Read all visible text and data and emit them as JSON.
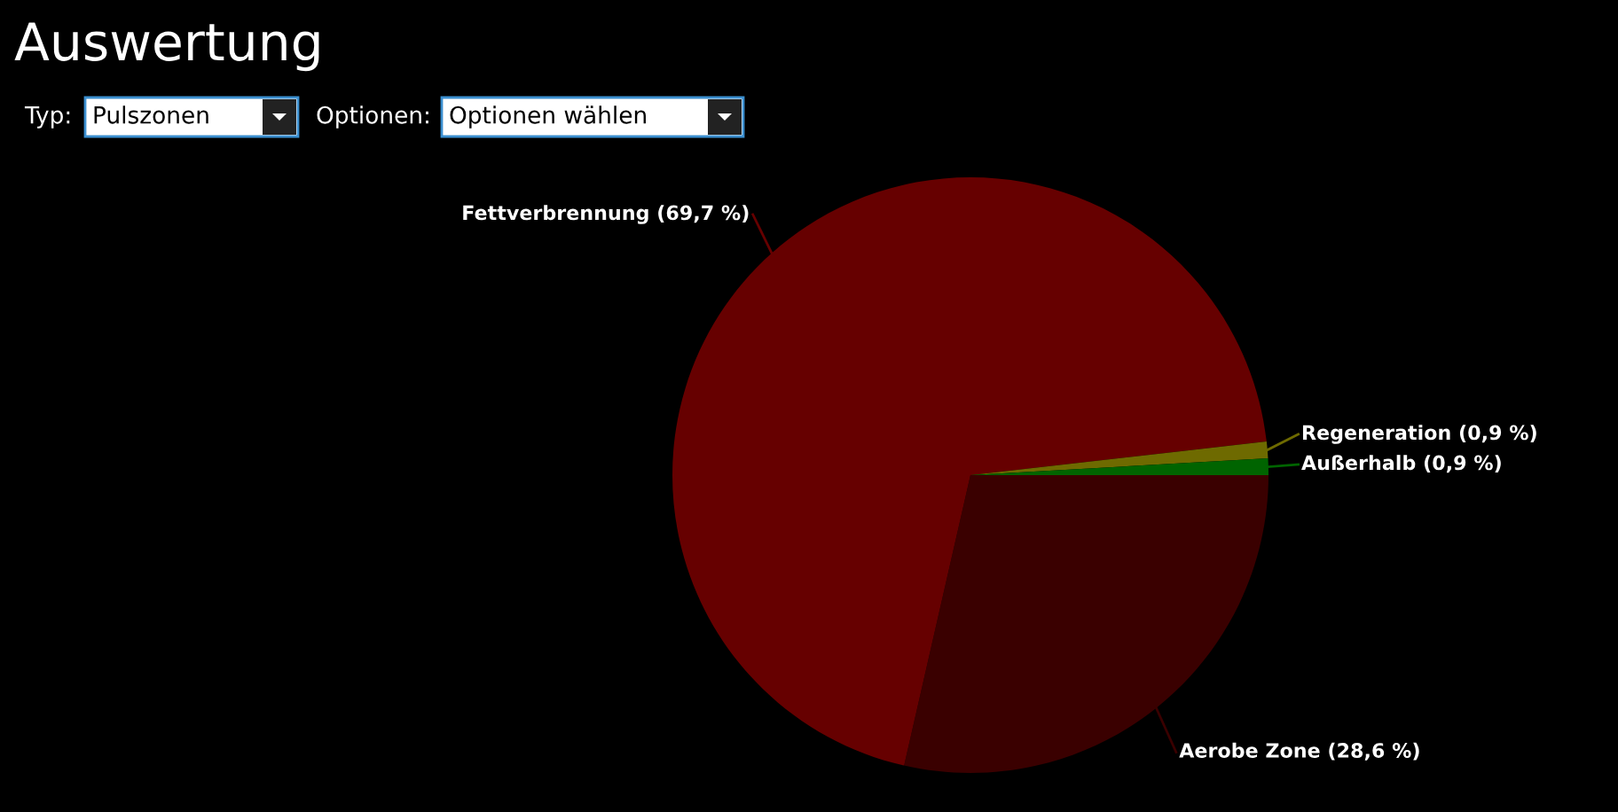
{
  "chart_data": {
    "type": "pie",
    "title": "Auswertung",
    "annotations": [
      "Typ:",
      "Pulszonen",
      "Optionen:",
      "Optionen wählen"
    ],
    "categories": [
      "Aerobe Zone",
      "Fettverbrennung",
      "Regeneration",
      "Außerhalb"
    ],
    "values": [
      28.6,
      69.7,
      0.9,
      0.9
    ],
    "value_labels": [
      "(28,6 %)",
      "(69,7 %)",
      "(0,9 %)",
      "(0,9 %)"
    ],
    "colors": [
      "#3a0000",
      "#660000",
      "#6e6a00",
      "#006400"
    ],
    "legend": false
  }
}
